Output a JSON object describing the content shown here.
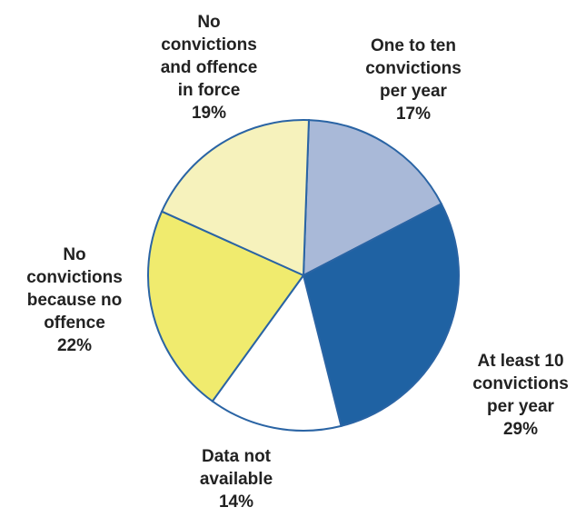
{
  "chart_data": {
    "type": "pie",
    "title": "",
    "slices": [
      {
        "label": "One to ten convictions per year",
        "text": "One to ten\nconvictions\nper year",
        "pct_label": "17%",
        "value": 17,
        "color": "#a9b9d8"
      },
      {
        "label": "At least 10 convictions per year",
        "text": "At least 10\nconvictions\nper year",
        "pct_label": "29%",
        "value": 29,
        "color": "#1f62a3"
      },
      {
        "label": "Data not available",
        "text": "Data not\navailable",
        "pct_label": "14%",
        "value": 14,
        "color": "#ffffff"
      },
      {
        "label": "No convictions because no offence",
        "text": "No\nconvictions\nbecause no\noffence",
        "pct_label": "22%",
        "value": 22,
        "color": "#f0eb6e"
      },
      {
        "label": "No convictions and offence in force",
        "text": "No\nconvictions\nand offence\nin force",
        "pct_label": "19%",
        "value": 19,
        "color": "#f6f2bc"
      }
    ],
    "outline_color": "#2a64a4",
    "start": "12 o'clock, clockwise"
  }
}
